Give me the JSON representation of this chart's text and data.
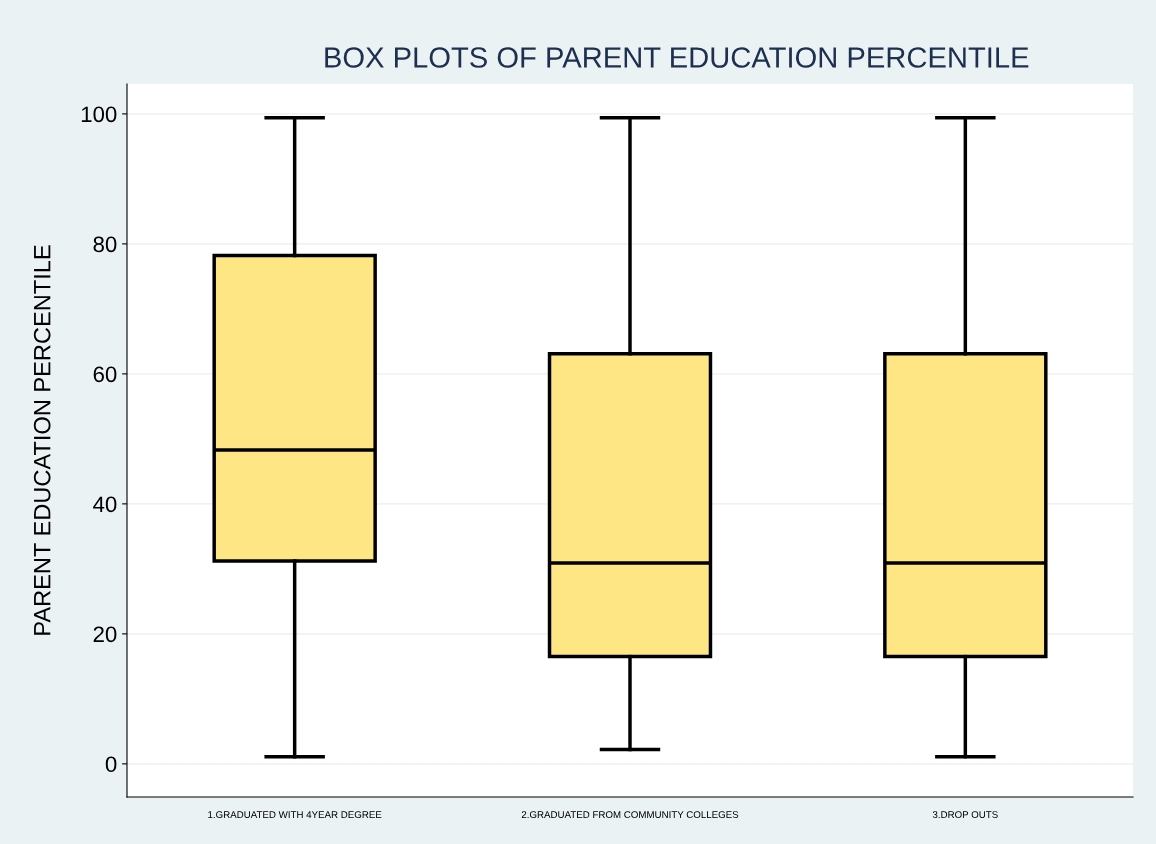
{
  "chart_data": {
    "type": "box",
    "title": "BOX PLOTS OF PARENT EDUCATION PERCENTILE",
    "ylabel": "PARENT EDUCATION PERCENTILE",
    "categories": [
      "1.GRADUATED WITH 4YEAR DEGREE",
      "2.GRADUATED FROM COMMUNITY COLLEGES",
      "3.DROP OUTS"
    ],
    "color": "#fee685",
    "boxes": [
      {
        "low": 1.1,
        "q1": 31.2,
        "median": 48.3,
        "q3": 78.2,
        "high": 99.4
      },
      {
        "low": 2.2,
        "q1": 16.5,
        "median": 30.9,
        "q3": 63.1,
        "high": 99.4
      },
      {
        "low": 1.1,
        "q1": 16.5,
        "median": 30.9,
        "q3": 63.1,
        "high": 99.4
      }
    ],
    "ylim": [
      -5.1,
      104.6
    ],
    "yticks": [
      0,
      20,
      40,
      60,
      80,
      100
    ],
    "grid": "y"
  }
}
